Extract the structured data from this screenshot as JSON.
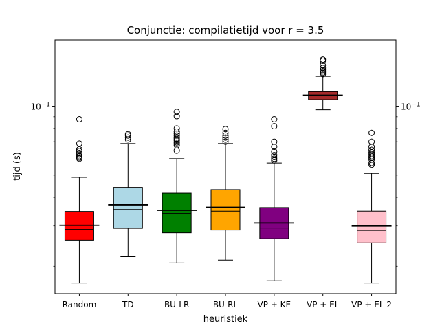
{
  "chart_data": {
    "type": "box",
    "title": "Conjunctie: compilatietijd voor r = 3.5",
    "xlabel": "heuristiek",
    "ylabel": "tijd (s)",
    "yscale": "log",
    "ylim": [
      0.0152,
      0.195
    ],
    "y_tick_label": "10",
    "y_tick_exponent": "−1",
    "y_tick_value": 0.1,
    "minor_ticks": [
      0.02,
      0.03,
      0.04,
      0.05,
      0.06,
      0.07,
      0.08,
      0.09
    ],
    "grid": false,
    "legend": "none",
    "series": [
      {
        "label": "Random",
        "color": "#ff0000",
        "whislo": 0.0169,
        "q1": 0.026,
        "med": 0.029,
        "q3": 0.0347,
        "whishi": 0.0489,
        "mean": 0.0302,
        "outliers": [
          0.0877,
          0.0687,
          0.0648,
          0.0637,
          0.0625,
          0.0615,
          0.0605,
          0.0597,
          0.059
        ]
      },
      {
        "label": "TD",
        "color": "#add8e6",
        "whislo": 0.022,
        "q1": 0.0293,
        "med": 0.0354,
        "q3": 0.0442,
        "whishi": 0.0687,
        "mean": 0.0371,
        "outliers": [
          0.0716,
          0.073,
          0.0745,
          0.0755
        ]
      },
      {
        "label": "BU-LR",
        "color": "#008000",
        "whislo": 0.0207,
        "q1": 0.028,
        "med": 0.034,
        "q3": 0.0417,
        "whishi": 0.059,
        "mean": 0.0351,
        "outliers": [
          0.0945,
          0.0905,
          0.08,
          0.0775,
          0.076,
          0.0745,
          0.073,
          0.072,
          0.0708,
          0.0695,
          0.0685,
          0.0675,
          0.064
        ]
      },
      {
        "label": "BU-RL",
        "color": "#ffa500",
        "whislo": 0.0213,
        "q1": 0.0288,
        "med": 0.0348,
        "q3": 0.0432,
        "whishi": 0.0687,
        "mean": 0.0362,
        "outliers": [
          0.0795,
          0.0765,
          0.0745,
          0.073,
          0.0715,
          0.07
        ]
      },
      {
        "label": "VP + KE",
        "color": "#800080",
        "whislo": 0.0173,
        "q1": 0.0264,
        "med": 0.0294,
        "q3": 0.0361,
        "whishi": 0.0565,
        "mean": 0.0309,
        "outliers": [
          0.0877,
          0.0818,
          0.07,
          0.0665,
          0.0635,
          0.0612,
          0.06,
          0.059,
          0.058
        ]
      },
      {
        "label": "VP + EL",
        "color": "#a52a2a",
        "whislo": 0.0966,
        "q1": 0.1068,
        "med": 0.1115,
        "q3": 0.1158,
        "whishi": 0.135,
        "mean": 0.1117,
        "outliers": [
          0.138,
          0.14,
          0.142,
          0.144,
          0.147,
          0.151,
          0.158,
          0.16
        ]
      },
      {
        "label": "VP + EL 2",
        "color": "#ffc0cb",
        "whislo": 0.0169,
        "q1": 0.0253,
        "med": 0.0287,
        "q3": 0.0348,
        "whishi": 0.0509,
        "mean": 0.03,
        "outliers": [
          0.0765,
          0.07,
          0.0665,
          0.0645,
          0.063,
          0.0618,
          0.0605,
          0.0595,
          0.0585,
          0.0565,
          0.0555
        ]
      }
    ]
  }
}
